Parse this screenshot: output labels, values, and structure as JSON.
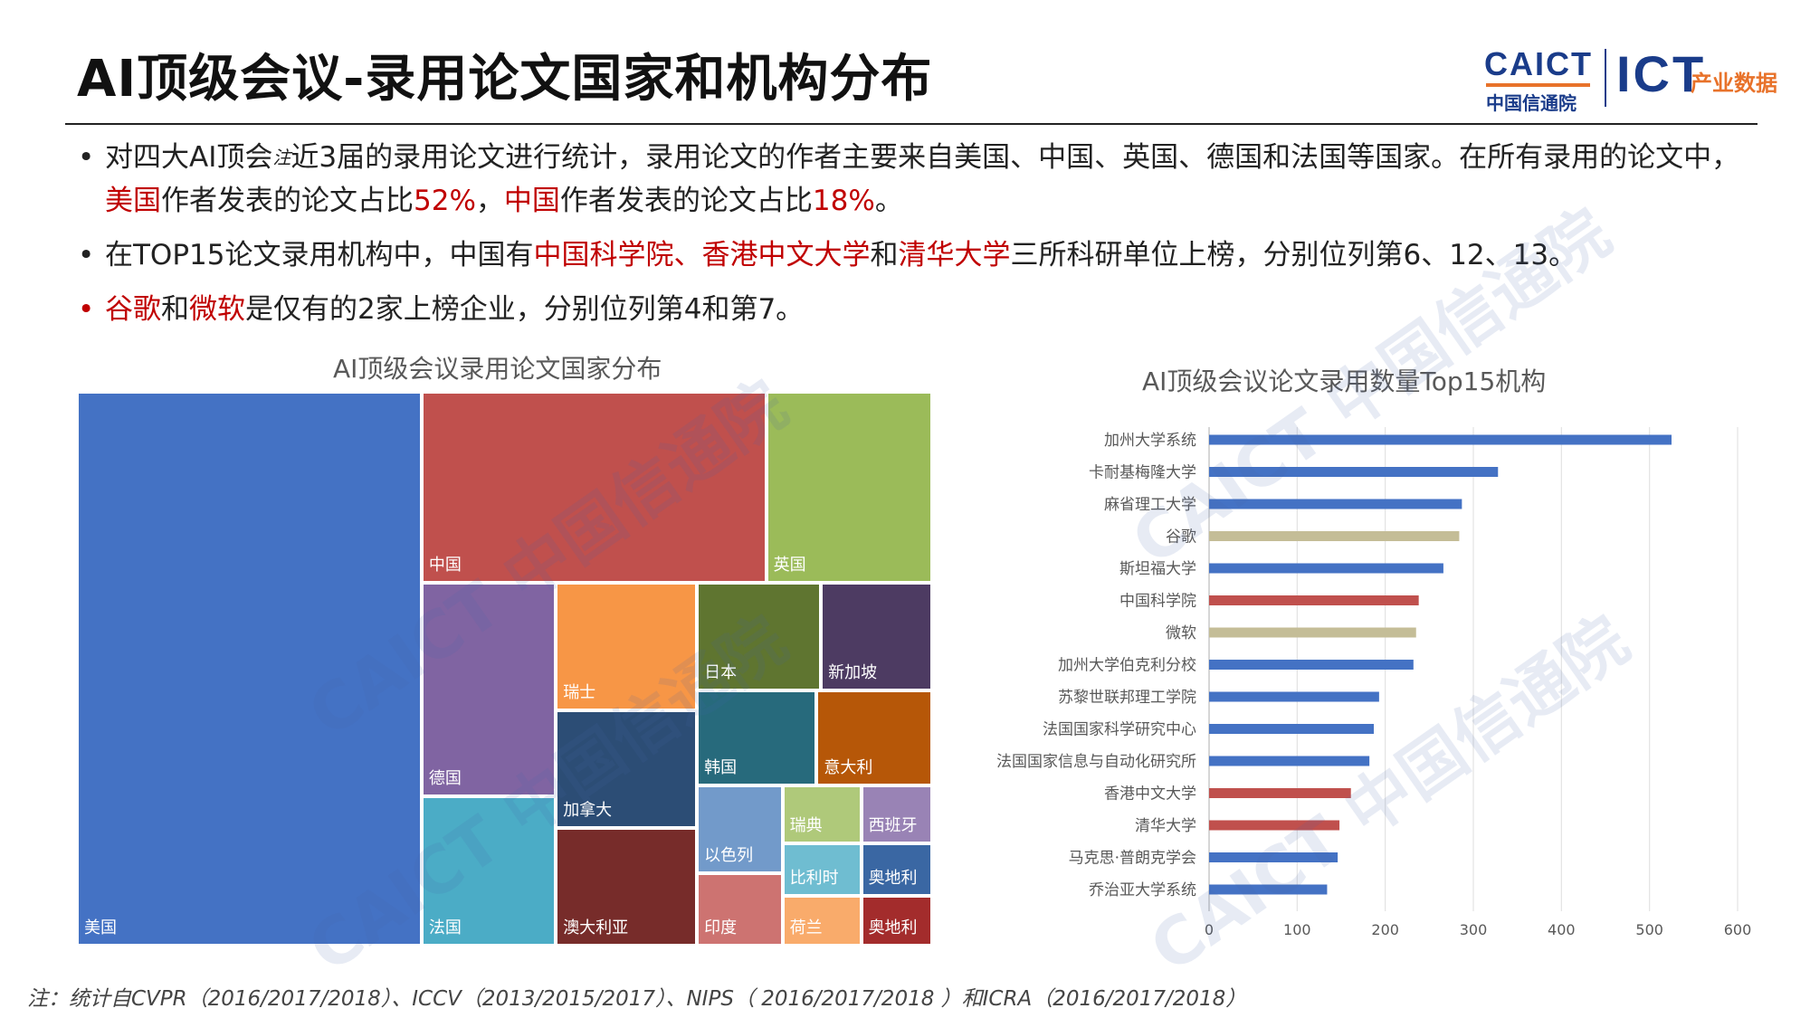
{
  "title": "AI顶级会议-录用论文国家和机构分布",
  "logo": {
    "caict": "CAICT",
    "cn": "中国信通院",
    "ict": "ICT",
    "ict_sub": "产业数据"
  },
  "bullets": {
    "b1": {
      "p1": "对四大AI顶会",
      "note": "注",
      "p2": "近3届的录用论文进行统计，录用论文的作者主要来自美国、中国、英国、德国和法国等国家。在所有录用的论文中，",
      "us": "美国",
      "p3": "作者发表的论文占比",
      "us_pct": "52%",
      "p4": "，",
      "cn": "中国",
      "p5": "作者发表的论文占比",
      "cn_pct": "18%",
      "p6": "。"
    },
    "b2": {
      "p1": "在TOP15论文录用机构中，中国有",
      "orgs": "中国科学院、香港中文大学",
      "p2": "和",
      "org3": "清华大学",
      "p3": "三所科研单位上榜，分别位列第6、12、13。"
    },
    "b3": {
      "google": "谷歌",
      "p1": "和",
      "ms": "微软",
      "p2": "是仅有的2家上榜企业，分别位列第4和第7。"
    }
  },
  "watermark": "CAICT 中国信通院",
  "footnote": "注：统计自CVPR（2016/2017/2018）、ICCV（2013/2015/2017）、NIPS（ 2016/2017/2018 ）和ICRA（2016/2017/2018）",
  "chart_data": [
    {
      "type": "treemap",
      "title": "AI顶级会议录用论文国家分布",
      "items": [
        {
          "name": "美国",
          "value": 52,
          "color": "#4472c4"
        },
        {
          "name": "中国",
          "value": 18,
          "color": "#c0504d"
        },
        {
          "name": "英国",
          "value": 8.5,
          "color": "#9bbb59"
        },
        {
          "name": "德国",
          "value": 4,
          "color": "#8064a2"
        },
        {
          "name": "法国",
          "value": 3.5,
          "color": "#4bacc6"
        },
        {
          "name": "瑞士",
          "value": 2.5,
          "color": "#f79646"
        },
        {
          "name": "加拿大",
          "value": 2.3,
          "color": "#2c4d75"
        },
        {
          "name": "澳大利亚",
          "value": 2.3,
          "color": "#772c2a"
        },
        {
          "name": "日本",
          "value": 1.7,
          "color": "#5f7530"
        },
        {
          "name": "新加坡",
          "value": 1.7,
          "color": "#4d3b62"
        },
        {
          "name": "韩国",
          "value": 1.5,
          "color": "#276a7c"
        },
        {
          "name": "意大利",
          "value": 1.5,
          "color": "#b65708"
        },
        {
          "name": "以色列",
          "value": 1.1,
          "color": "#729aca"
        },
        {
          "name": "印度",
          "value": 0.9,
          "color": "#cd7371"
        },
        {
          "name": "瑞典",
          "value": 0.5,
          "color": "#afc97a"
        },
        {
          "name": "西班牙",
          "value": 0.5,
          "color": "#9983b5"
        },
        {
          "name": "比利时",
          "value": 0.5,
          "color": "#6fbdd1"
        },
        {
          "name": "奥地利",
          "value": 0.5,
          "color": "#3a67a3"
        },
        {
          "name": "荷兰",
          "value": 0.4,
          "color": "#f9ab6b"
        },
        {
          "name": "奥地利",
          "value": 0.4,
          "color": "#a32c2c"
        }
      ]
    },
    {
      "type": "bar",
      "orientation": "horizontal",
      "title": "AI顶级会议论文录用数量Top15机构",
      "categories": [
        "加州大学系统",
        "卡耐基梅隆大学",
        "麻省理工大学",
        "谷歌",
        "斯坦福大学",
        "中国科学院",
        "微软",
        "加州大学伯克利分校",
        "苏黎世联邦理工学院",
        "法国国家科学研究中心",
        "法国国家信息与自动化研究所",
        "香港中文大学",
        "清华大学",
        "马克思·普朗克学会",
        "乔治亚大学系统"
      ],
      "values": [
        525,
        328,
        287,
        284,
        266,
        238,
        235,
        232,
        193,
        187,
        182,
        161,
        148,
        146,
        134
      ],
      "colors": [
        "#4472c4",
        "#4472c4",
        "#4472c4",
        "#c4bd97",
        "#4472c4",
        "#c0504d",
        "#c4bd97",
        "#4472c4",
        "#4472c4",
        "#4472c4",
        "#4472c4",
        "#c0504d",
        "#c0504d",
        "#4472c4",
        "#4472c4"
      ],
      "xlim": [
        0,
        600
      ],
      "xticks": [
        0,
        100,
        200,
        300,
        400,
        500,
        600
      ],
      "grid": true
    }
  ]
}
